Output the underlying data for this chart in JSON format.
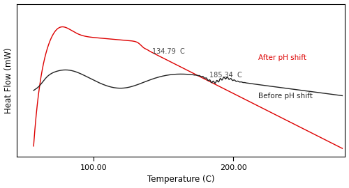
{
  "xlabel": "Temperature (C)",
  "ylabel": "Heat Flow (mW)",
  "xlim": [
    45,
    280
  ],
  "ylim": [
    0,
    10
  ],
  "label_after": "After pH shift",
  "label_before": "Before pH shift",
  "annot_after": "134.79  C",
  "annot_before": "185.34  C",
  "color_after": "#dd0000",
  "color_before": "#222222",
  "xtick_locs": [
    100.0,
    200.0
  ],
  "xtick_labels": [
    "100.00",
    "200.00"
  ],
  "background_color": "#ffffff"
}
